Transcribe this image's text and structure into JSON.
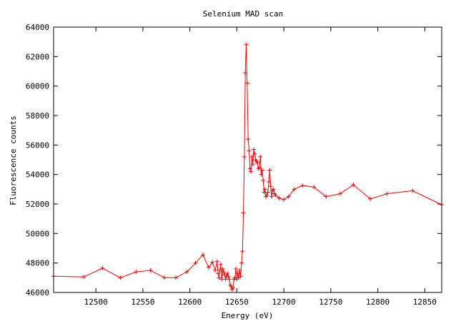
{
  "chart_data": {
    "type": "line",
    "title": "Selenium MAD scan",
    "xlabel": "Energy (eV)",
    "ylabel": "Fluorescence counts",
    "xlim": [
      12455,
      12868
    ],
    "ylim": [
      46000,
      64000
    ],
    "x_ticks": [
      12500,
      12550,
      12600,
      12650,
      12700,
      12750,
      12800,
      12850
    ],
    "y_ticks": [
      46000,
      48000,
      50000,
      52000,
      54000,
      56000,
      58000,
      60000,
      62000,
      64000
    ],
    "grid": false,
    "legend": "none",
    "series": [
      {
        "color": "#ff0000",
        "marker": "plus",
        "x": [
          12455,
          12487,
          12507,
          12526,
          12543,
          12558,
          12573,
          12585,
          12597,
          12606,
          12614,
          12620,
          12624,
          12627,
          12629,
          12630,
          12631,
          12632,
          12633,
          12634,
          12635,
          12636,
          12637,
          12638,
          12639,
          12640,
          12641,
          12642,
          12643,
          12644,
          12645,
          12646,
          12647,
          12648,
          12649,
          12650,
          12651,
          12652,
          12653,
          12654,
          12655,
          12656,
          12657,
          12658,
          12659,
          12660,
          12661,
          12662,
          12663,
          12664,
          12665,
          12666,
          12667,
          12668,
          12669,
          12670,
          12671,
          12672,
          12673,
          12674,
          12675,
          12676,
          12677,
          12678,
          12679,
          12680,
          12681,
          12682,
          12683,
          12684,
          12685,
          12686,
          12687,
          12688,
          12689,
          12690,
          12691,
          12695,
          12700,
          12705,
          12711,
          12720,
          12732,
          12745,
          12760,
          12774,
          12792,
          12810,
          12837,
          12868
        ],
        "y": [
          47100,
          47050,
          47650,
          47000,
          47400,
          47500,
          47000,
          47000,
          47400,
          48000,
          48550,
          47700,
          48050,
          47500,
          48100,
          47300,
          47000,
          47500,
          47900,
          46900,
          47600,
          47400,
          47200,
          46900,
          47100,
          47300,
          47100,
          46900,
          46500,
          46400,
          46200,
          46300,
          46900,
          47000,
          47600,
          46900,
          47300,
          47000,
          47500,
          47100,
          48000,
          48800,
          51400,
          55200,
          60900,
          62800,
          60200,
          56400,
          55600,
          54400,
          54200,
          55200,
          54700,
          55700,
          55400,
          55000,
          54900,
          54800,
          54400,
          54500,
          55200,
          54000,
          54300,
          53600,
          52800,
          53000,
          52500,
          52600,
          52800,
          53500,
          54300,
          53200,
          52500,
          52900,
          53000,
          52700,
          52600,
          52400,
          52300,
          52500,
          53000,
          53250,
          53150,
          52500,
          52700,
          53300,
          52350,
          52700,
          52900,
          51950
        ]
      }
    ]
  }
}
